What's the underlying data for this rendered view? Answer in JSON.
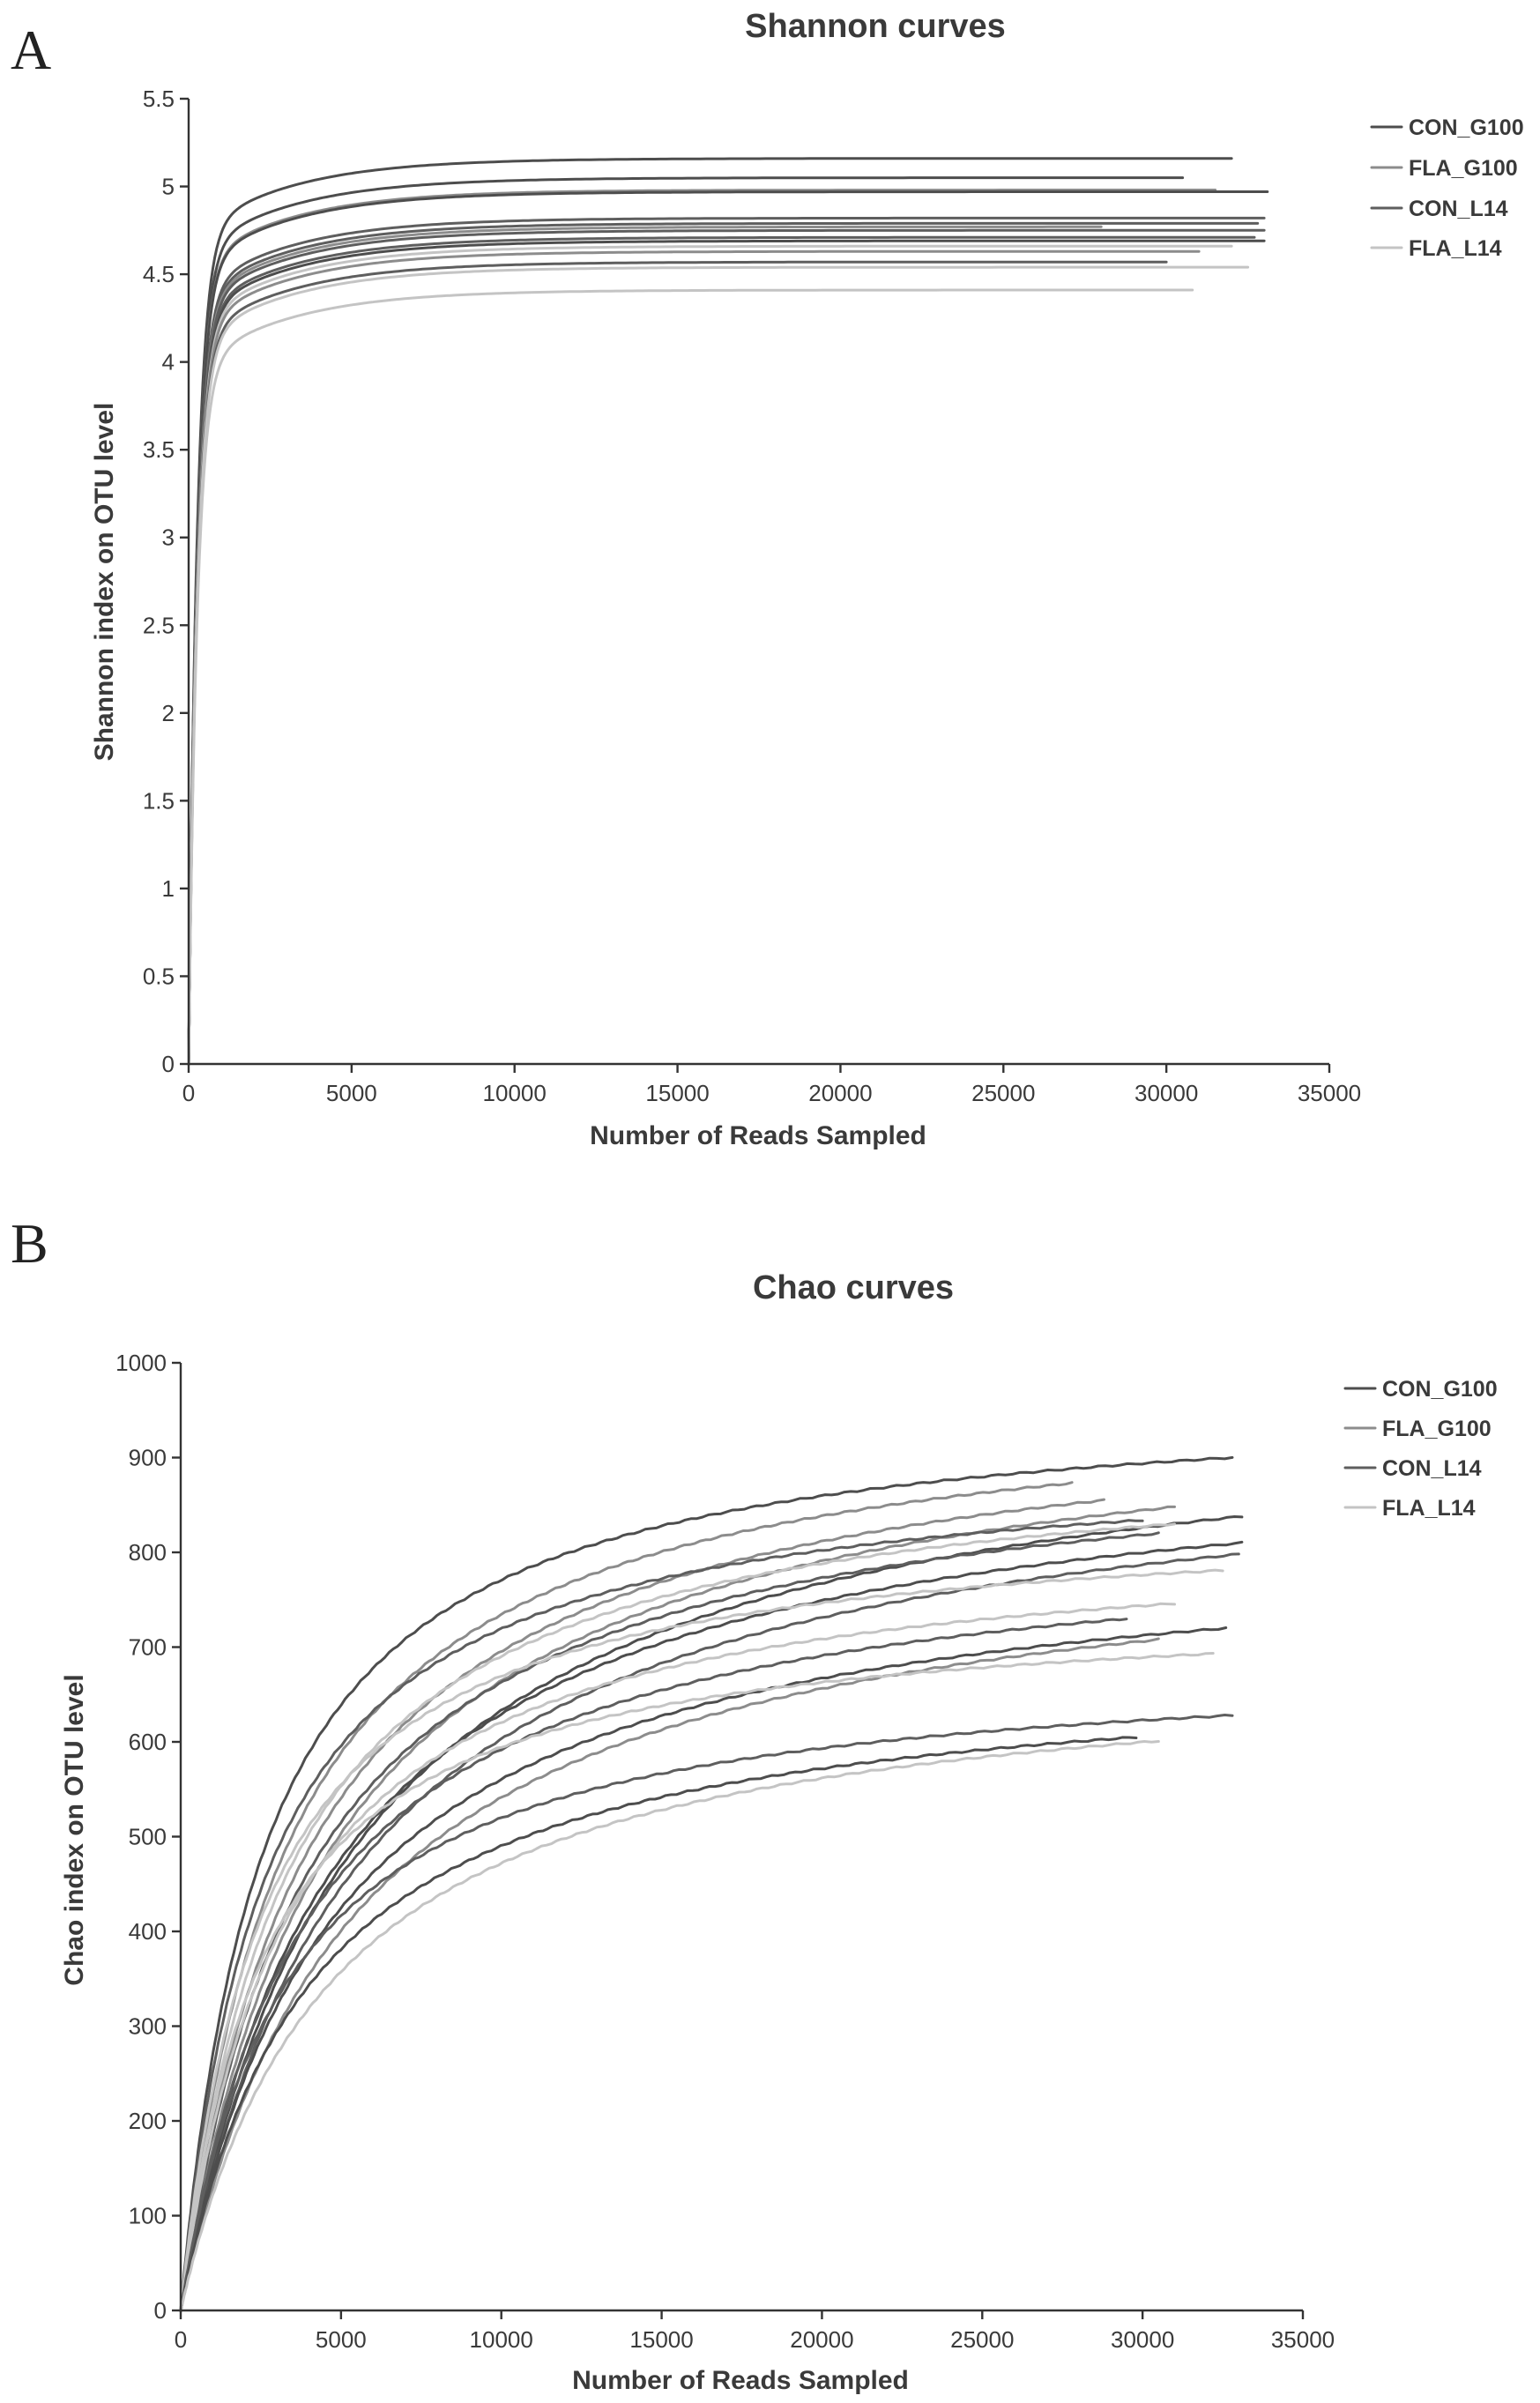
{
  "chart_data": [
    {
      "panel": "A",
      "type": "line",
      "title": "Shannon curves",
      "xlabel": "Number of Reads Sampled",
      "ylabel": "Shannon index on OTU level",
      "xlim": [
        0,
        35000
      ],
      "ylim": [
        0,
        5.5
      ],
      "xticks": [
        "0",
        "5000",
        "10000",
        "15000",
        "20000",
        "25000",
        "30000",
        "35000"
      ],
      "yticks": [
        "0",
        "0.5",
        "1",
        "1.5",
        "2",
        "2.5",
        "3",
        "3.5",
        "4",
        "4.5",
        "5",
        "5.5"
      ],
      "legend": [
        {
          "name": "CON_G100",
          "color": "#4d4d4d"
        },
        {
          "name": "FLA_G100",
          "color": "#8c8c8c"
        },
        {
          "name": "CON_L14",
          "color": "#5e5e5e"
        },
        {
          "name": "FLA_L14",
          "color": "#c4c4c4"
        }
      ],
      "legend_position": "top-right",
      "series": [
        {
          "group": "CON_G100",
          "plateau": 5.16,
          "end_x": 32000
        },
        {
          "group": "CON_G100",
          "plateau": 5.05,
          "end_x": 30500
        },
        {
          "group": "FLA_G100",
          "plateau": 4.98,
          "end_x": 31500
        },
        {
          "group": "CON_G100",
          "plateau": 4.97,
          "end_x": 33100
        },
        {
          "group": "CON_L14",
          "plateau": 4.82,
          "end_x": 33000
        },
        {
          "group": "CON_L14",
          "plateau": 4.79,
          "end_x": 32800
        },
        {
          "group": "FLA_G100",
          "plateau": 4.77,
          "end_x": 28000
        },
        {
          "group": "CON_L14",
          "plateau": 4.75,
          "end_x": 33000
        },
        {
          "group": "CON_L14",
          "plateau": 4.71,
          "end_x": 32700
        },
        {
          "group": "CON_G100",
          "plateau": 4.69,
          "end_x": 33000
        },
        {
          "group": "FLA_L14",
          "plateau": 4.66,
          "end_x": 32000
        },
        {
          "group": "FLA_G100",
          "plateau": 4.63,
          "end_x": 31000
        },
        {
          "group": "CON_L14",
          "plateau": 4.57,
          "end_x": 30000
        },
        {
          "group": "FLA_L14",
          "plateau": 4.54,
          "end_x": 32500
        },
        {
          "group": "FLA_L14",
          "plateau": 4.41,
          "end_x": 30800
        }
      ]
    },
    {
      "panel": "B",
      "type": "line",
      "title": "Chao curves",
      "xlabel": "Number of Reads Sampled",
      "ylabel": "Chao index on OTU level",
      "xlim": [
        0,
        35000
      ],
      "ylim": [
        0,
        1000
      ],
      "xticks": [
        "0",
        "5000",
        "10000",
        "15000",
        "20000",
        "25000",
        "30000",
        "35000"
      ],
      "yticks": [
        "0",
        "100",
        "200",
        "300",
        "400",
        "500",
        "600",
        "700",
        "800",
        "900",
        "1000"
      ],
      "legend": [
        {
          "name": "CON_G100",
          "color": "#4d4d4d"
        },
        {
          "name": "FLA_G100",
          "color": "#8c8c8c"
        },
        {
          "name": "CON_L14",
          "color": "#5e5e5e"
        },
        {
          "name": "FLA_L14",
          "color": "#c4c4c4"
        }
      ],
      "legend_position": "top-right",
      "series": [
        {
          "group": "CON_G100",
          "end_x": 32800,
          "end_y": 900
        },
        {
          "group": "FLA_G100",
          "end_x": 27800,
          "end_y": 873
        },
        {
          "group": "FLA_G100",
          "end_x": 28800,
          "end_y": 855
        },
        {
          "group": "FLA_G100",
          "end_x": 31000,
          "end_y": 848
        },
        {
          "group": "CON_G100",
          "end_x": 33100,
          "end_y": 838
        },
        {
          "group": "CON_L14",
          "end_x": 30000,
          "end_y": 834
        },
        {
          "group": "FLA_L14",
          "end_x": 31000,
          "end_y": 830
        },
        {
          "group": "CON_L14",
          "end_x": 30500,
          "end_y": 820
        },
        {
          "group": "CON_G100",
          "end_x": 33100,
          "end_y": 810
        },
        {
          "group": "CON_L14",
          "end_x": 33000,
          "end_y": 798
        },
        {
          "group": "FLA_L14",
          "end_x": 32500,
          "end_y": 781
        },
        {
          "group": "FLA_L14",
          "end_x": 31000,
          "end_y": 746
        },
        {
          "group": "CON_L14",
          "end_x": 29500,
          "end_y": 730
        },
        {
          "group": "CON_G100",
          "end_x": 32600,
          "end_y": 720
        },
        {
          "group": "FLA_G100",
          "end_x": 30500,
          "end_y": 708
        },
        {
          "group": "FLA_L14",
          "end_x": 32200,
          "end_y": 693
        },
        {
          "group": "CON_L14",
          "end_x": 32800,
          "end_y": 628
        },
        {
          "group": "CON_G100",
          "end_x": 29800,
          "end_y": 605
        },
        {
          "group": "FLA_L14",
          "end_x": 30500,
          "end_y": 601
        }
      ]
    }
  ]
}
